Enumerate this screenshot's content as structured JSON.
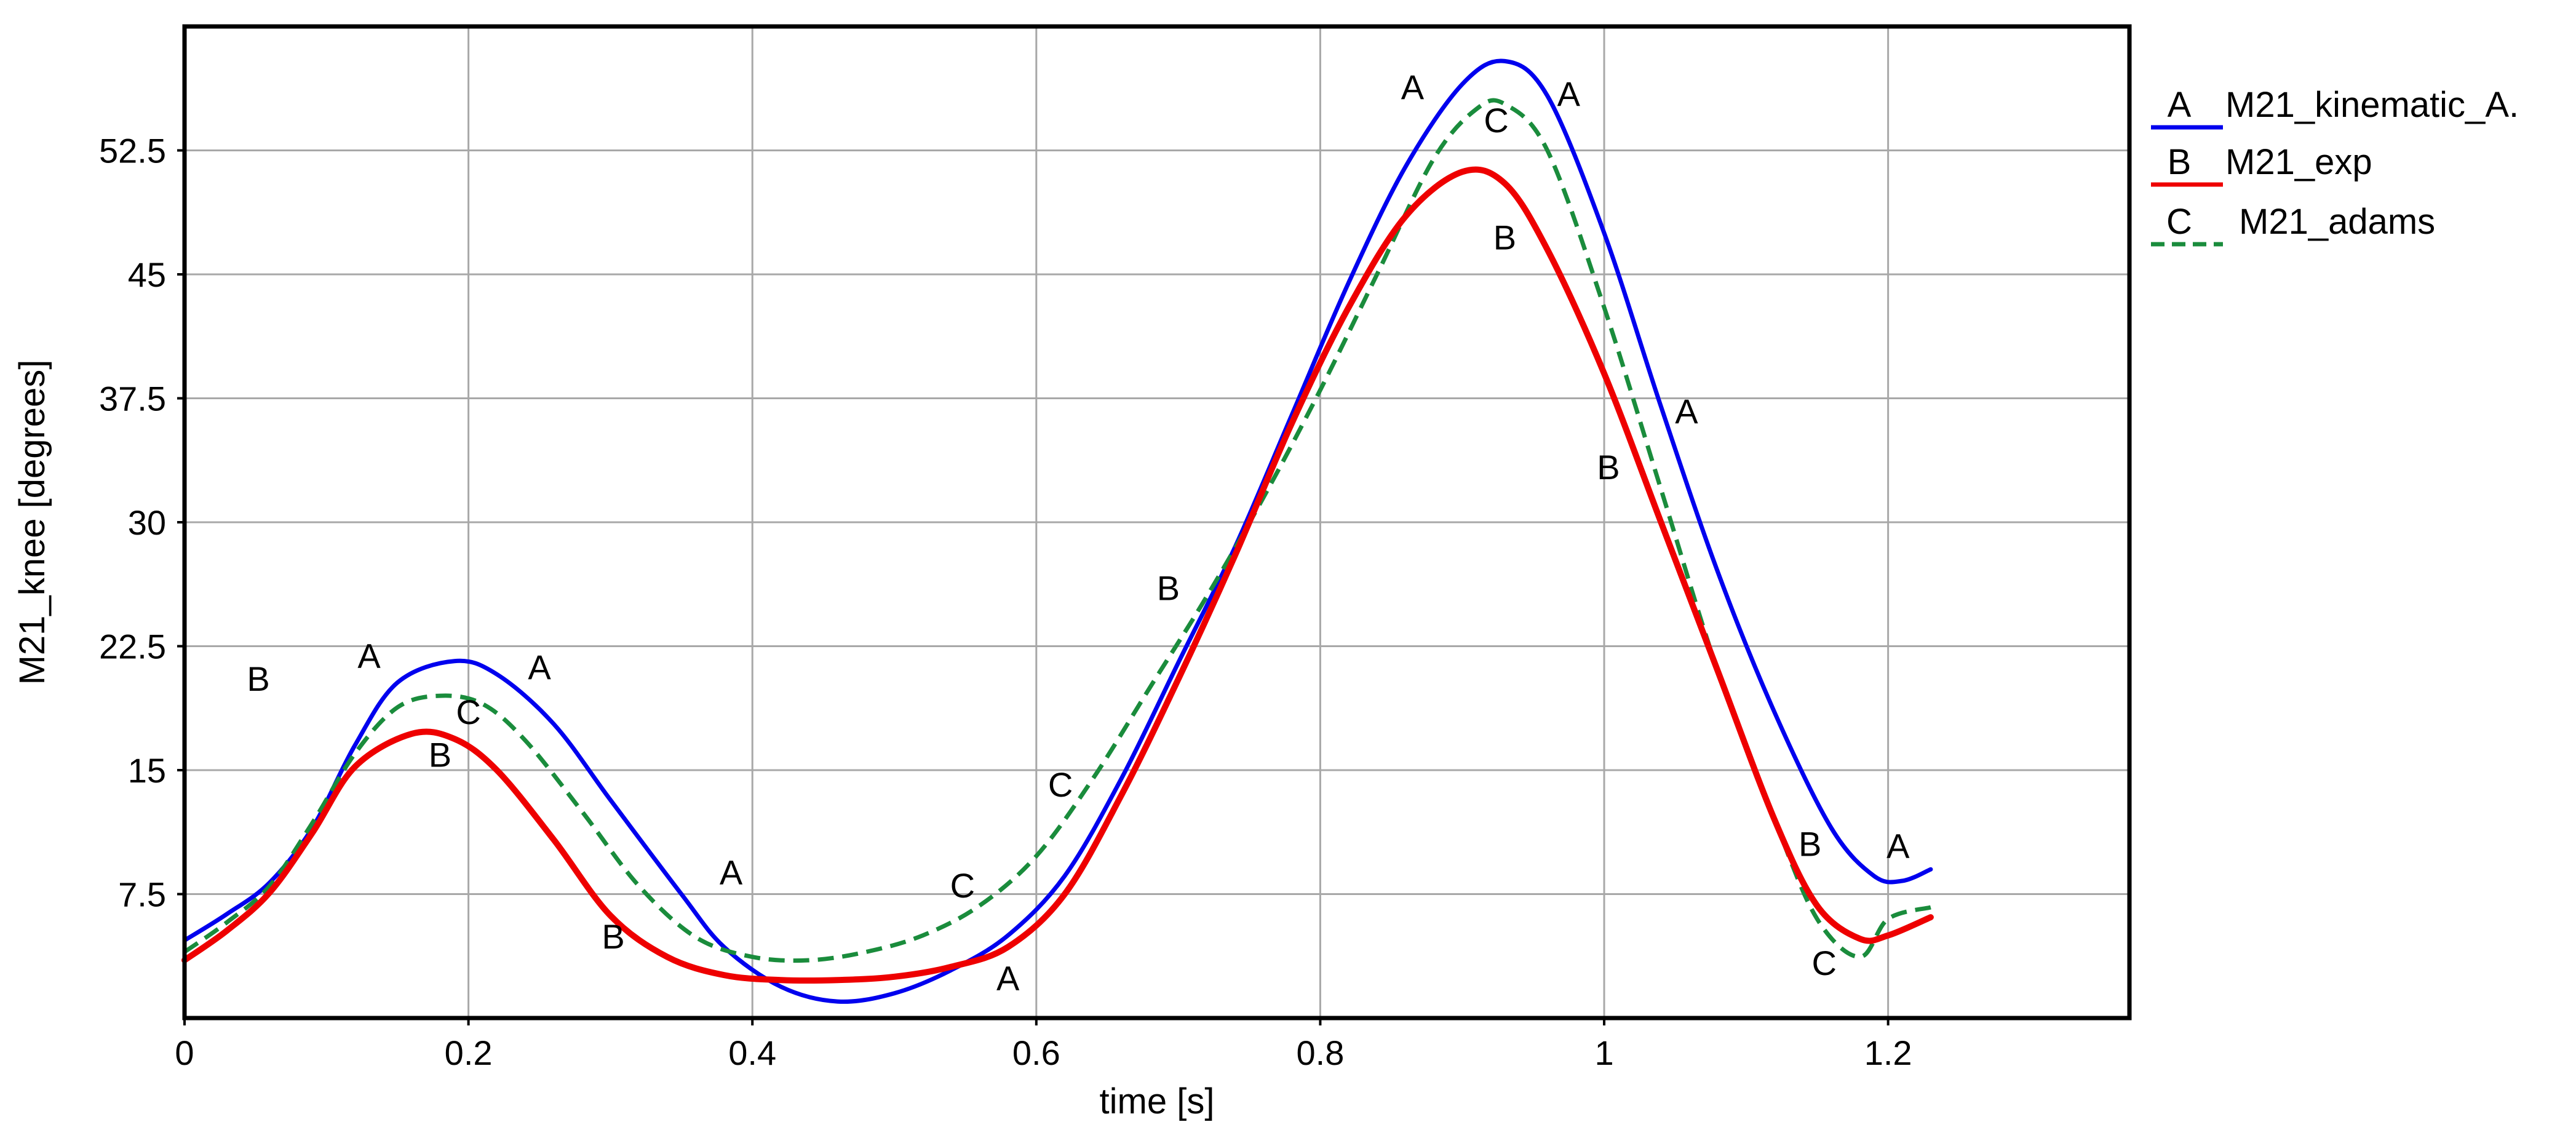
{
  "chart_data": {
    "type": "line",
    "title": "",
    "xlabel": "time [s]",
    "ylabel": "M21_knee [degrees]",
    "xlim": [
      0,
      1.37
    ],
    "ylim": [
      0,
      60
    ],
    "grid": true,
    "legend_position": "right",
    "x_ticks": [
      0,
      0.2,
      0.4,
      0.6,
      0.8,
      1.0,
      1.2
    ],
    "x_tick_labels": [
      "0",
      "0.2",
      "0.4",
      "0.6",
      "0.8",
      "1",
      "1.2"
    ],
    "y_ticks": [
      7.5,
      15,
      22.5,
      30,
      37.5,
      45,
      52.5
    ],
    "y_tick_labels": [
      "7.5",
      "15",
      "22.5",
      "30",
      "37.5",
      "45",
      "52.5"
    ],
    "series": [
      {
        "name": "M21_kinematic_A.",
        "marker": "A",
        "color": "#0000ee",
        "dash": "solid",
        "x": [
          0,
          0.03,
          0.06,
          0.09,
          0.12,
          0.15,
          0.19,
          0.22,
          0.26,
          0.3,
          0.35,
          0.38,
          0.42,
          0.46,
          0.5,
          0.54,
          0.58,
          0.62,
          0.66,
          0.7,
          0.74,
          0.78,
          0.82,
          0.86,
          0.9,
          0.93,
          0.96,
          1.0,
          1.04,
          1.08,
          1.12,
          1.16,
          1.19,
          1.21,
          1.23
        ],
        "y": [
          4.7,
          6.3,
          8.2,
          11.5,
          16.5,
          20.3,
          21.6,
          20.8,
          17.8,
          13.2,
          7.5,
          4.3,
          1.9,
          1.0,
          1.5,
          2.9,
          5.0,
          8.6,
          14.5,
          21.5,
          28.5,
          36.5,
          44.5,
          51.5,
          56.5,
          57.9,
          55.8,
          47.5,
          37.0,
          27.0,
          18.5,
          11.5,
          8.6,
          8.3,
          9.0
        ]
      },
      {
        "name": "M21_exp",
        "marker": "B",
        "color": "#ee0000",
        "dash": "solid",
        "x": [
          0,
          0.03,
          0.06,
          0.09,
          0.12,
          0.16,
          0.19,
          0.22,
          0.26,
          0.3,
          0.34,
          0.38,
          0.42,
          0.46,
          0.5,
          0.54,
          0.58,
          0.62,
          0.66,
          0.7,
          0.74,
          0.78,
          0.82,
          0.86,
          0.9,
          0.93,
          0.96,
          1.0,
          1.04,
          1.08,
          1.12,
          1.15,
          1.18,
          1.2,
          1.23
        ],
        "y": [
          3.5,
          5.3,
          7.6,
          11.2,
          15.2,
          17.2,
          16.9,
          15.0,
          10.8,
          6.2,
          3.7,
          2.6,
          2.3,
          2.3,
          2.5,
          3.1,
          4.3,
          7.5,
          13.5,
          20.5,
          28.0,
          36.0,
          43.0,
          48.5,
          51.2,
          50.5,
          46.5,
          39.0,
          30.0,
          21.0,
          12.0,
          6.8,
          4.8,
          5.0,
          6.1
        ]
      },
      {
        "name": "M21_adams",
        "marker": "C",
        "color": "#1a8c3c",
        "dash": "dashed",
        "x": [
          0,
          0.03,
          0.06,
          0.09,
          0.12,
          0.15,
          0.18,
          0.21,
          0.24,
          0.28,
          0.32,
          0.36,
          0.4,
          0.44,
          0.48,
          0.52,
          0.56,
          0.6,
          0.64,
          0.68,
          0.72,
          0.76,
          0.8,
          0.84,
          0.88,
          0.91,
          0.93,
          0.96,
          1.0,
          1.04,
          1.08,
          1.12,
          1.15,
          1.18,
          1.2,
          1.23
        ],
        "y": [
          4.0,
          5.8,
          8.0,
          11.8,
          16.0,
          18.8,
          19.5,
          19.0,
          16.8,
          12.5,
          8.0,
          4.9,
          3.7,
          3.5,
          4.0,
          5.0,
          6.8,
          9.8,
          14.5,
          20.0,
          25.5,
          31.5,
          38.0,
          45.0,
          52.0,
          55.0,
          55.3,
          52.5,
          43.0,
          32.0,
          21.0,
          12.0,
          6.0,
          3.7,
          6.0,
          6.7
        ]
      }
    ],
    "annotations": [
      {
        "text": "A",
        "x": 0.13,
        "y": 21.2
      },
      {
        "text": "A",
        "x": 0.25,
        "y": 20.5
      },
      {
        "text": "A",
        "x": 0.385,
        "y": 8.1
      },
      {
        "text": "A",
        "x": 0.58,
        "y": 1.7
      },
      {
        "text": "A",
        "x": 0.865,
        "y": 55.6
      },
      {
        "text": "A",
        "x": 0.975,
        "y": 55.2
      },
      {
        "text": "A",
        "x": 1.058,
        "y": 36.0
      },
      {
        "text": "A",
        "x": 1.207,
        "y": 9.7
      },
      {
        "text": "B",
        "x": 0.052,
        "y": 19.8
      },
      {
        "text": "B",
        "x": 0.18,
        "y": 15.2
      },
      {
        "text": "B",
        "x": 0.302,
        "y": 4.2
      },
      {
        "text": "B",
        "x": 0.693,
        "y": 25.3
      },
      {
        "text": "B",
        "x": 0.93,
        "y": 46.5
      },
      {
        "text": "B",
        "x": 1.003,
        "y": 32.6
      },
      {
        "text": "B",
        "x": 1.145,
        "y": 9.8
      },
      {
        "text": "C",
        "x": 0.2,
        "y": 17.8
      },
      {
        "text": "C",
        "x": 0.548,
        "y": 7.3
      },
      {
        "text": "C",
        "x": 0.617,
        "y": 13.4
      },
      {
        "text": "C",
        "x": 0.924,
        "y": 53.6
      },
      {
        "text": "C",
        "x": 1.155,
        "y": 2.6
      }
    ]
  },
  "legend": {
    "entries": [
      {
        "marker": "A",
        "label": "M21_kinematic_A.",
        "color": "#0000ee",
        "dash": "solid"
      },
      {
        "marker": "B",
        "label": "M21_exp",
        "color": "#ee0000",
        "dash": "solid"
      },
      {
        "marker": "C",
        "label": "M21_adams",
        "color": "#1a8c3c",
        "dash": "dashed"
      }
    ]
  }
}
